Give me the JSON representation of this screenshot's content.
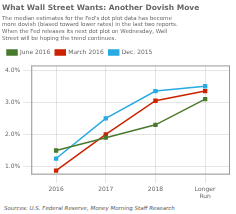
{
  "chart_data": {
    "type": "line",
    "title": "What Wall Street Wants: Another Dovish Move",
    "subtitle": "The median estimates for the Fed's dot plot data has become\nmore dovish (biased toward lower rates) in the last two reports.\nWhen the Fed releases its next dot plot on Wednesday, Wall\nStreet will be hoping the trend continues.",
    "annotations": [
      "Sources: U.S. Federal Reserve, Money Morning Staff Research"
    ],
    "categories": [
      "2016",
      "2017",
      "2018",
      "Longer\nRun"
    ],
    "series": [
      {
        "name": "June 2016",
        "color": "#4a7a2e",
        "values": [
          1.5,
          1.9,
          2.3,
          3.1
        ]
      },
      {
        "name": "March 2016",
        "color": "#cc2200",
        "values": [
          0.875,
          2.0,
          3.05,
          3.35
        ]
      },
      {
        "name": "Dec. 2015",
        "color": "#29aae2",
        "values": [
          1.25,
          2.5,
          3.35,
          3.5
        ]
      }
    ],
    "ylim": [
      0.75,
      4.15
    ],
    "yticks": [
      {
        "value": 1.0,
        "label": "1.0%"
      },
      {
        "value": 2.0,
        "label": "2.0%"
      },
      {
        "value": 3.0,
        "label": "3.0%"
      },
      {
        "value": 4.0,
        "label": "4.0%"
      }
    ],
    "grid": true,
    "legend": "upper left",
    "marker": "square"
  }
}
